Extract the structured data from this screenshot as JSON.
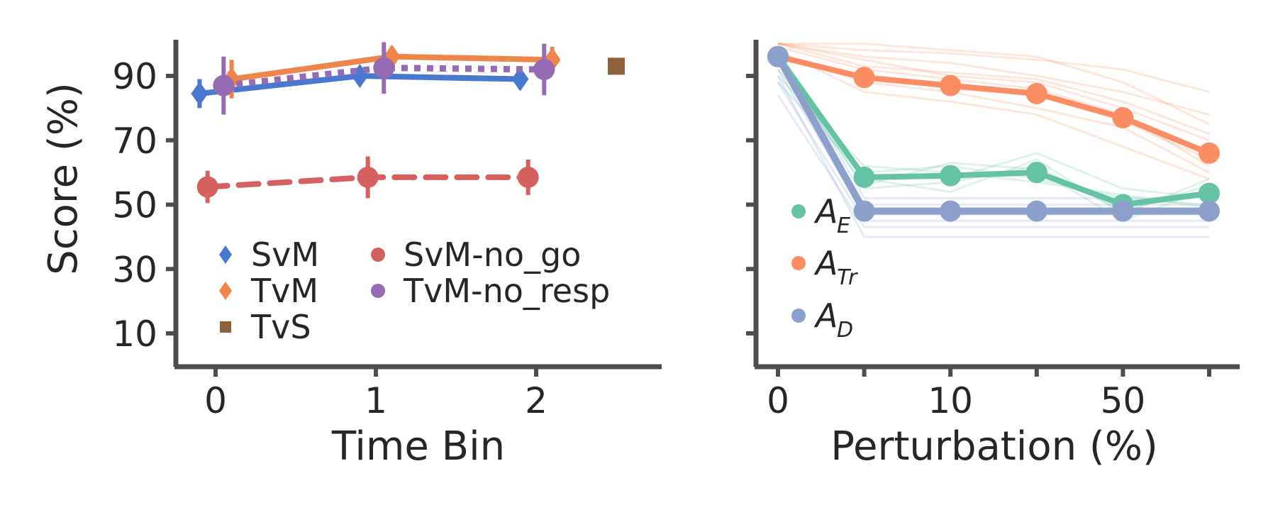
{
  "chart_data": [
    {
      "type": "line",
      "title": "",
      "xlabel": "Time Bin",
      "ylabel": "Score (%)",
      "xlim": [
        -0.25,
        2.75
      ],
      "ylim": [
        0,
        100
      ],
      "xticks": [
        "0",
        "1",
        "2"
      ],
      "yticks": [
        "10",
        "30",
        "50",
        "70",
        "90"
      ],
      "legend_position": "lower-left",
      "series": [
        {
          "name": "SvM",
          "marker": "diamond",
          "line": "solid",
          "color": "#4878d0",
          "x": [
            0,
            1,
            2
          ],
          "y": [
            84.5,
            90,
            89
          ],
          "err": [
            4.5,
            2.5,
            3
          ]
        },
        {
          "name": "TvM",
          "marker": "diamond",
          "line": "solid",
          "color": "#ee854a",
          "x": [
            0,
            1,
            2
          ],
          "y": [
            89,
            96,
            95
          ],
          "err": [
            6,
            3,
            4
          ]
        },
        {
          "name": "TvS",
          "marker": "square",
          "line": "none",
          "color": "#8c613c",
          "x": [
            2.5
          ],
          "y": [
            93
          ],
          "err": [
            0
          ]
        },
        {
          "name": "SvM-no_go",
          "marker": "circle",
          "line": "dashed",
          "color": "#d65f5f",
          "x": [
            0,
            1,
            2
          ],
          "y": [
            55.5,
            58.5,
            58.5
          ],
          "err": [
            5,
            6.5,
            5.5
          ]
        },
        {
          "name": "TvM-no_resp",
          "marker": "circle",
          "line": "dotted",
          "color": "#956cb4",
          "x": [
            0,
            1,
            2
          ],
          "y": [
            87,
            92.5,
            92
          ],
          "err": [
            9,
            8,
            8
          ]
        }
      ]
    },
    {
      "type": "line",
      "title": "",
      "xlabel": "Perturbation (%)",
      "ylabel": "",
      "ylim": [
        0,
        100
      ],
      "categories": [
        "0",
        "",
        "10",
        "",
        "50",
        ""
      ],
      "legend_position": "center-left",
      "series": [
        {
          "name": "A",
          "sub": "E",
          "color": "#66c2a5",
          "values": [
            96,
            58.5,
            59,
            60,
            50,
            53.5
          ]
        },
        {
          "name": "A",
          "sub": "Tr",
          "color": "#fc8d62",
          "values": [
            96,
            89.5,
            87,
            84.5,
            77,
            66
          ]
        },
        {
          "name": "A",
          "sub": "D",
          "color": "#8da0cb",
          "values": [
            96,
            48,
            48,
            48,
            48,
            48
          ]
        }
      ],
      "background_runs": {
        "E": [
          [
            96,
            55,
            57,
            62,
            48,
            56
          ],
          [
            92,
            60,
            62,
            58,
            52,
            50
          ],
          [
            98,
            58,
            54,
            64,
            47,
            58
          ],
          [
            90,
            62,
            60,
            57,
            53,
            49
          ],
          [
            94,
            56,
            63,
            61,
            45,
            55
          ],
          [
            88,
            59,
            58,
            66,
            55,
            52
          ]
        ],
        "Tr": [
          [
            100,
            98,
            97,
            95,
            92,
            85
          ],
          [
            100,
            95,
            90,
            88,
            80,
            70
          ],
          [
            99,
            92,
            89,
            86,
            78,
            62
          ],
          [
            100,
            100,
            98,
            96,
            88,
            75
          ],
          [
            97,
            88,
            85,
            80,
            74,
            60
          ],
          [
            100,
            96,
            94,
            90,
            85,
            78
          ],
          [
            98,
            85,
            82,
            78,
            68,
            58
          ],
          [
            100,
            93,
            91,
            89,
            82,
            72
          ],
          [
            96,
            90,
            86,
            84,
            76,
            64
          ]
        ],
        "D": [
          [
            96,
            50,
            50,
            50,
            50,
            50
          ],
          [
            92,
            47,
            47,
            47,
            47,
            47
          ],
          [
            88,
            45,
            45,
            45,
            45,
            45
          ],
          [
            84,
            43,
            43,
            43,
            43,
            43
          ],
          [
            98,
            52,
            52,
            52,
            52,
            52
          ],
          [
            90,
            40,
            40,
            40,
            40,
            40
          ]
        ]
      }
    }
  ]
}
